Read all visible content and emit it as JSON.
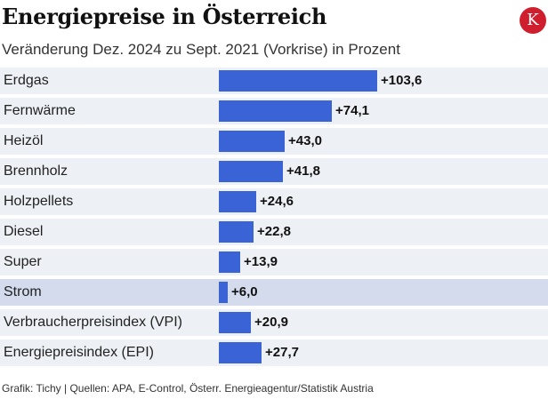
{
  "header": {
    "title": "Energiepreise in Österreich",
    "subtitle": "Veränderung Dez. 2024 zu Sept. 2021 (Vorkrise) in Prozent",
    "logo_letter": "K"
  },
  "footer": {
    "source": "Grafik: Tichy | Quellen: APA, E-Control, Österr. Energieagentur/Statistik Austria"
  },
  "colors": {
    "bar": "#3a63d6",
    "row_bg": "#edf0f4",
    "row_highlight": "#d3dbec",
    "logo": "#cf1f2e"
  },
  "chart_data": {
    "type": "bar",
    "orientation": "horizontal",
    "title": "Energiepreise in Österreich",
    "subtitle": "Veränderung Dez. 2024 zu Sept. 2021 (Vorkrise) in Prozent",
    "categories": [
      "Erdgas",
      "Fernwärme",
      "Heizöl",
      "Brennholz",
      "Holzpellets",
      "Diesel",
      "Super",
      "Strom",
      "Verbraucherpreisindex (VPI)",
      "Energiepreisindex (EPI)"
    ],
    "values": [
      103.6,
      74.1,
      43.0,
      41.8,
      24.6,
      22.8,
      13.9,
      6.0,
      20.9,
      27.7
    ],
    "value_labels": [
      "+103,6",
      "+74,1",
      "+43,0",
      "+41,8",
      "+24,6",
      "+22,8",
      "+13,9",
      "+6,0",
      "+20,9",
      "+27,7"
    ],
    "highlighted": [
      "Strom"
    ],
    "xlim": [
      0,
      103.6
    ],
    "xlabel": "",
    "ylabel": ""
  }
}
